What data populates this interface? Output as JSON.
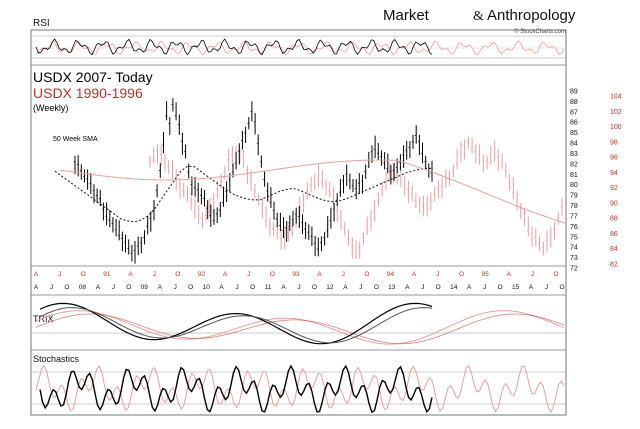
{
  "chart_data": {
    "type": "line",
    "brand": {
      "word1": "Market",
      "word2": "Anthropology",
      "credit": "© StockCharts.com"
    },
    "title": "USDX 2007- Today",
    "subtitle": "USDX 1990-1996",
    "subtitle2": "(Weekly)",
    "annotation": "50 Week SMA",
    "panels": {
      "rsi": "RSI",
      "trix": "TRIX",
      "stochastics": "Stochastics"
    },
    "colors": {
      "primary": "#000000",
      "overlay": "#c0302b",
      "overlay_light": "#e8a0a0",
      "sma": "#111111"
    },
    "y_axis_black": [
      "89",
      "88",
      "87",
      "86",
      "85",
      "84",
      "83",
      "82",
      "81",
      "80",
      "79",
      "78",
      "77",
      "76",
      "75",
      "74",
      "73",
      "72"
    ],
    "y_axis_red": [
      "104",
      "102",
      "100",
      "98",
      "96",
      "94",
      "92",
      "90",
      "88",
      "86",
      "84",
      "82"
    ],
    "x_axis_red": [
      "A",
      "J",
      "O",
      "91",
      "A",
      "J",
      "O",
      "92",
      "A",
      "J",
      "O",
      "93",
      "A",
      "J",
      "O",
      "94",
      "A",
      "J",
      "O",
      "95",
      "A",
      "J",
      "O"
    ],
    "x_axis_black": [
      "A",
      "J",
      "O",
      "08",
      "A",
      "J",
      "O",
      "09",
      "A",
      "J",
      "O",
      "10",
      "A",
      "J",
      "O",
      "11",
      "A",
      "J",
      "O",
      "12",
      "A",
      "J",
      "O",
      "13",
      "A",
      "J",
      "O",
      "14",
      "A",
      "J",
      "O",
      "15",
      "A",
      "J",
      "O"
    ],
    "ylim": [
      71.5,
      89.5
    ],
    "series": [
      {
        "name": "USDX 2007- Today",
        "values": [
          82,
          81.5,
          81,
          80.5,
          80,
          79.5,
          79,
          78.5,
          78,
          77,
          76.5,
          76,
          75.5,
          75,
          74.5,
          74,
          73.5,
          73,
          72.5,
          72.5,
          73,
          73.5,
          74,
          75,
          76,
          77,
          79,
          81,
          84,
          87,
          86,
          88,
          87,
          86,
          84,
          83,
          81,
          79.5,
          79,
          79,
          78.5,
          78,
          77,
          76.5,
          76,
          76.5,
          77,
          78,
          79,
          80,
          81,
          82,
          83,
          84,
          85,
          86,
          87,
          86,
          84,
          82,
          80,
          79,
          78,
          77,
          76,
          75.5,
          75,
          75,
          75.5,
          76,
          76.5,
          76,
          75.5,
          75,
          74.5,
          74,
          73.5,
          73,
          73.5,
          74,
          75,
          76,
          77,
          78,
          79,
          80,
          80.5,
          80,
          79.5,
          79,
          79.5,
          80,
          81,
          82,
          83,
          83.5,
          83,
          82.5,
          82,
          81.5,
          81,
          81,
          81.5,
          82,
          82.5,
          83,
          83.5,
          84,
          84.5,
          84,
          83,
          82,
          81,
          81
        ]
      },
      {
        "name": "USDX 1990-1996",
        "values": [
          82,
          82.5,
          83,
          82.5,
          82,
          81.5,
          81,
          80,
          79.5,
          79,
          78.5,
          78,
          77,
          76.5,
          76,
          76.5,
          77,
          78,
          79,
          80,
          81,
          82,
          82.5,
          83,
          82.5,
          82,
          81,
          80,
          79,
          78,
          77,
          76,
          75.5,
          75,
          74.5,
          74,
          74,
          74.5,
          75,
          76,
          77,
          78,
          79,
          79.5,
          80,
          80.5,
          80,
          79.5,
          79,
          78,
          77,
          76,
          75,
          74,
          73,
          72.5,
          73,
          74,
          75,
          76,
          77,
          78,
          79,
          80,
          80.5,
          81,
          80.5,
          80,
          79.5,
          79,
          78.5,
          78,
          77.5,
          77,
          77.5,
          78,
          78.5,
          79,
          79.5,
          80,
          80.5,
          81,
          82,
          83,
          83.5,
          84,
          83.5,
          83,
          82.5,
          82,
          82,
          82.5,
          83,
          82.5,
          82,
          81,
          80,
          79,
          78,
          77,
          76,
          75,
          74.5,
          74,
          73.5,
          73,
          73.5,
          74,
          75,
          76,
          77
        ]
      },
      {
        "name": "50 Week SMA",
        "values": [
          81,
          80.5,
          80,
          79.5,
          79,
          78.5,
          78,
          77.5,
          77,
          76.5,
          76,
          75.8,
          75.7,
          75.9,
          76.3,
          77,
          78,
          79,
          80,
          81,
          81.5,
          81.5,
          81,
          80.5,
          80,
          79.5,
          79,
          78.6,
          78.3,
          78.1,
          78,
          78,
          78.3,
          78.6,
          78.9,
          79.1,
          79.2,
          79,
          78.7,
          78.4,
          78.1,
          77.9,
          77.8,
          77.9,
          78.1,
          78.4,
          78.7,
          79,
          79.3,
          79.6,
          79.9,
          80.2,
          80.5,
          80.8,
          81,
          81.2,
          81.3,
          81.3
        ]
      }
    ]
  }
}
